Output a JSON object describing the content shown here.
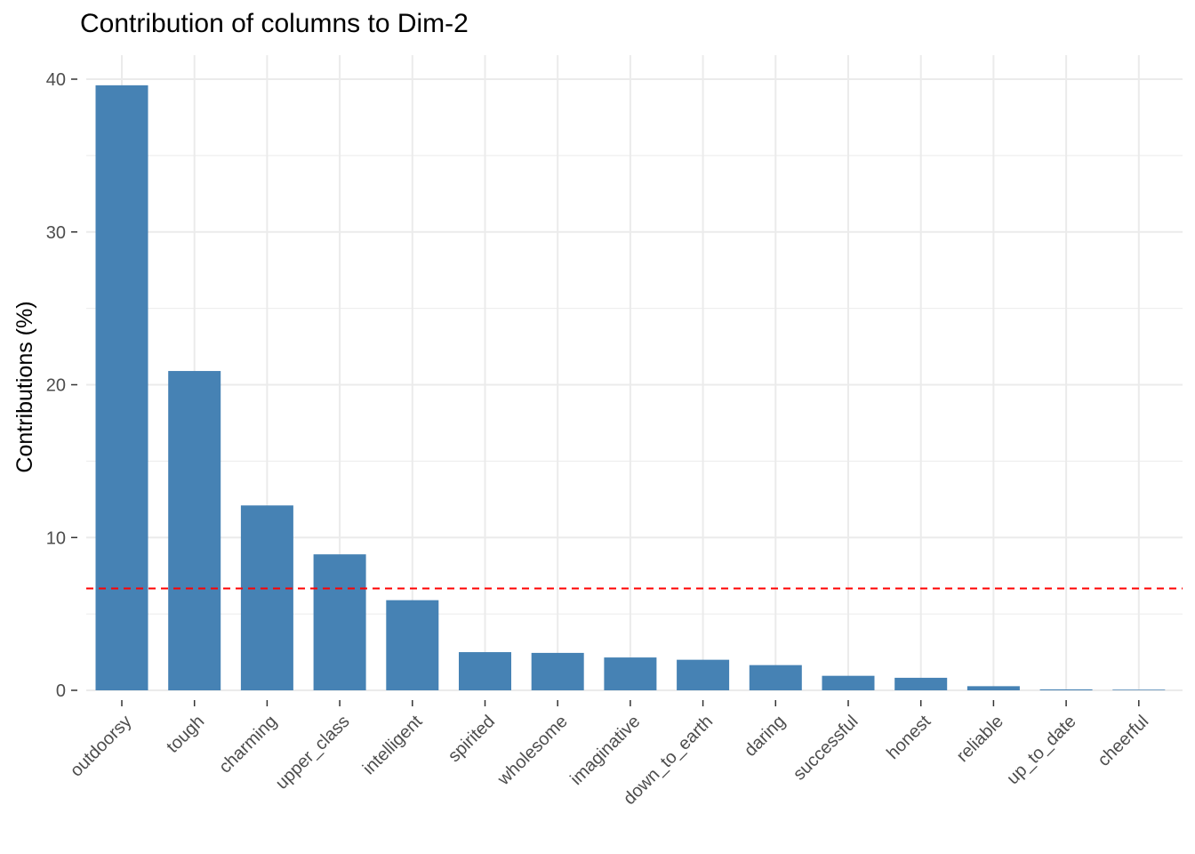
{
  "chart_data": {
    "type": "bar",
    "title": "Contribution of columns to Dim-2",
    "xlabel": "",
    "ylabel": "Contributions (%)",
    "categories": [
      "outdoorsy",
      "tough",
      "charming",
      "upper_class",
      "intelligent",
      "spirited",
      "wholesome",
      "imaginative",
      "down_to_earth",
      "daring",
      "successful",
      "honest",
      "reliable",
      "up_to_date",
      "cheerful"
    ],
    "values": [
      39.6,
      20.9,
      12.1,
      8.9,
      5.9,
      2.5,
      2.45,
      2.15,
      2.0,
      1.65,
      0.95,
      0.82,
      0.27,
      0.06,
      0.04
    ],
    "reference_line": 6.67,
    "ylim": [
      0,
      40
    ],
    "yticks": [
      0,
      10,
      20,
      30,
      40
    ],
    "grid": true,
    "colors": {
      "bar": "#4682B4",
      "reference_line": "#FF0000",
      "grid": "#EBEBEB"
    }
  }
}
